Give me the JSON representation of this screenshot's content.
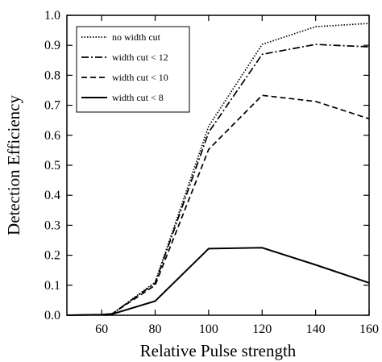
{
  "chart_data": {
    "type": "line",
    "xlabel": "Relative Pulse strength",
    "ylabel": "Detection Efficiency",
    "xlim": [
      47,
      160
    ],
    "ylim": [
      0.0,
      1.0
    ],
    "xticks": [
      60,
      80,
      100,
      120,
      140,
      160
    ],
    "yticks": [
      0.0,
      0.1,
      0.2,
      0.3,
      0.4,
      0.5,
      0.6,
      0.7,
      0.8,
      0.9,
      1.0
    ],
    "xtick_labels": [
      "60",
      "80",
      "100",
      "120",
      "140",
      "160"
    ],
    "ytick_labels": [
      "0.0",
      "0.1",
      "0.2",
      "0.3",
      "0.4",
      "0.5",
      "0.6",
      "0.7",
      "0.8",
      "0.9",
      "1.0"
    ],
    "grid": false,
    "legend_position": "top-left",
    "series": [
      {
        "name": "no width cut",
        "dash": "dotted",
        "points": [
          [
            47,
            0.0
          ],
          [
            60,
            0.002
          ],
          [
            64,
            0.005
          ],
          [
            80,
            0.11
          ],
          [
            100,
            0.63
          ],
          [
            120,
            0.903
          ],
          [
            140,
            0.962
          ],
          [
            160,
            0.973
          ]
        ]
      },
      {
        "name": "width cut < 12",
        "dash": "dashdot",
        "points": [
          [
            47,
            0.0
          ],
          [
            60,
            0.002
          ],
          [
            64,
            0.005
          ],
          [
            80,
            0.107
          ],
          [
            100,
            0.61
          ],
          [
            120,
            0.87
          ],
          [
            140,
            0.903
          ],
          [
            160,
            0.895
          ]
        ]
      },
      {
        "name": "width cut < 10",
        "dash": "dashed",
        "points": [
          [
            47,
            0.0
          ],
          [
            60,
            0.002
          ],
          [
            64,
            0.005
          ],
          [
            80,
            0.1
          ],
          [
            100,
            0.553
          ],
          [
            120,
            0.733
          ],
          [
            140,
            0.713
          ],
          [
            160,
            0.655
          ]
        ]
      },
      {
        "name": "width cut < 8",
        "dash": "solid",
        "points": [
          [
            47,
            0.0
          ],
          [
            60,
            0.002
          ],
          [
            64,
            0.004
          ],
          [
            80,
            0.047
          ],
          [
            100,
            0.222
          ],
          [
            120,
            0.225
          ],
          [
            140,
            0.168
          ],
          [
            160,
            0.108
          ]
        ]
      }
    ]
  }
}
